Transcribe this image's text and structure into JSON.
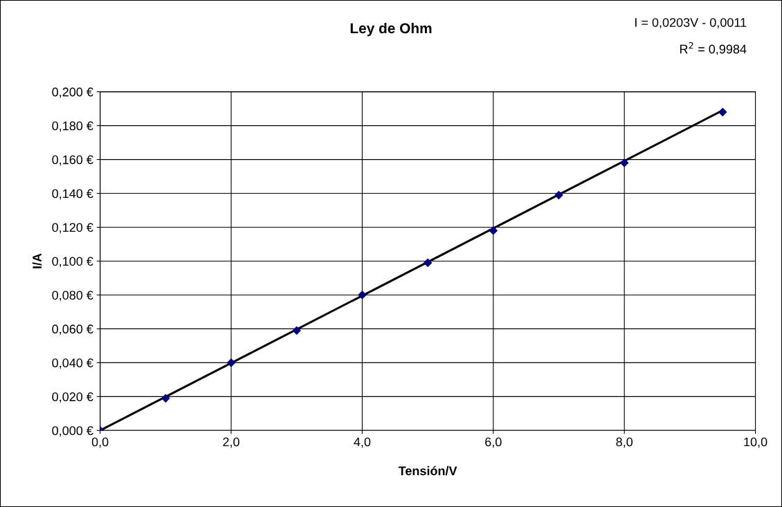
{
  "chart_data": {
    "type": "scatter",
    "title": "Ley de Ohm",
    "xlabel": "Tensión/V",
    "ylabel": "I/A",
    "annotations": [
      "I = 0,0203V - 0,0011",
      "R$^{2}$ = 0,9984"
    ],
    "series": [
      {
        "color": "#000080",
        "marker": "diamond",
        "x": [
          0,
          1,
          2,
          3,
          4,
          5,
          6,
          7,
          8,
          9.5
        ],
        "values": [
          0,
          0.019,
          0.04,
          0.059,
          0.08,
          0.099,
          0.118,
          0.139,
          0.158,
          0.188
        ]
      },
      {
        "type": "line",
        "color": "#000000",
        "marker": "none",
        "line_style": "solid",
        "x": [
          0,
          9.5
        ],
        "values": [
          0,
          0.189
        ]
      }
    ],
    "xlim": [
      0,
      10
    ],
    "xticks": [
      {
        "value": 0,
        "label": "0,0"
      },
      {
        "value": 2,
        "label": "2,0"
      },
      {
        "value": 4,
        "label": "4,0"
      },
      {
        "value": 6,
        "label": "6,0"
      },
      {
        "value": 8,
        "label": "8,0"
      },
      {
        "value": 10,
        "label": "10,0"
      }
    ],
    "ylim": [
      0,
      0.2
    ],
    "yticks": [
      {
        "value": 0,
        "label": "0,000 €"
      },
      {
        "value": 0.02,
        "label": "0,020 €"
      },
      {
        "value": 0.04,
        "label": "0,040 €"
      },
      {
        "value": 0.06,
        "label": "0,060 €"
      },
      {
        "value": 0.08,
        "label": "0,080 €"
      },
      {
        "value": 0.1,
        "label": "0,100 €"
      },
      {
        "value": 0.12,
        "label": "0,120 €"
      },
      {
        "value": 0.14,
        "label": "0,140 €"
      },
      {
        "value": 0.16,
        "label": "0,160 €"
      },
      {
        "value": 0.18,
        "label": "0,180 €"
      },
      {
        "value": 0.2,
        "label": "0,200 €"
      }
    ],
    "grid": true,
    "legend": false
  }
}
